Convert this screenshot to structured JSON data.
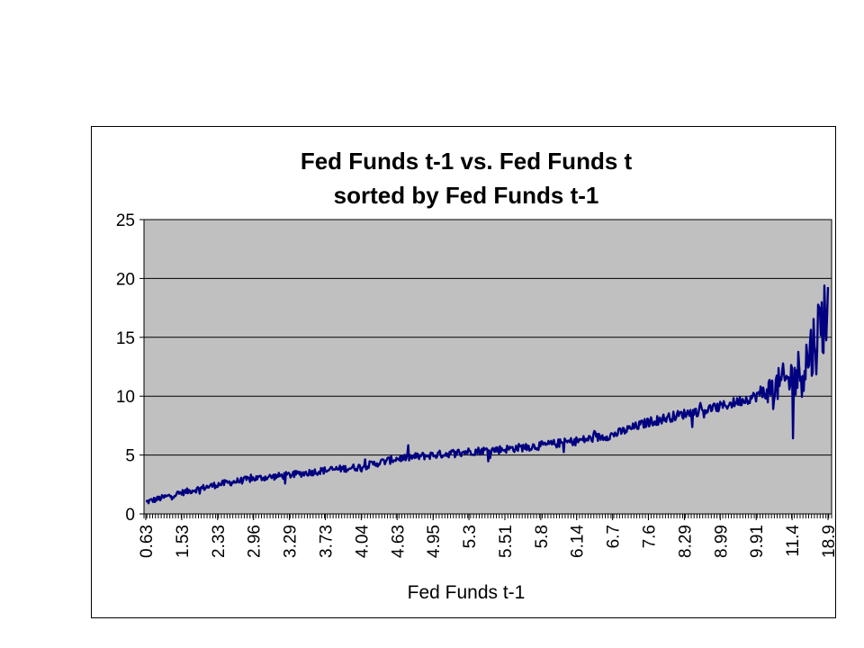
{
  "chart_data": {
    "type": "line",
    "title": "Fed Funds t-1 vs. Fed Funds t",
    "subtitle": "sorted by Fed Funds t-1",
    "xlabel": "Fed Funds t-1",
    "ylabel": "",
    "ylim": [
      0,
      25
    ],
    "yticks": [
      0,
      5,
      10,
      15,
      20,
      25
    ],
    "x_tick_labels": [
      "0.63",
      "1.53",
      "2.33",
      "2.96",
      "3.29",
      "3.73",
      "4.04",
      "4.63",
      "4.95",
      "5.3",
      "5.51",
      "5.8",
      "6.14",
      "6.7",
      "7.6",
      "8.29",
      "8.99",
      "9.91",
      "11.4",
      "18.9"
    ],
    "grid": "horizontal",
    "legend": "none",
    "plot_background": "#c0c0c0",
    "series": [
      {
        "color": "#000080",
        "x": [
          "0.63",
          "1.53",
          "2.33",
          "2.96",
          "3.29",
          "3.73",
          "4.04",
          "4.63",
          "4.95",
          "5.3",
          "5.51",
          "5.8",
          "6.14",
          "6.7",
          "7.6",
          "8.29",
          "8.99",
          "9.91",
          "11.4",
          "18.9"
        ],
        "values": [
          1.0,
          1.8,
          2.5,
          3.0,
          3.3,
          3.7,
          4.0,
          4.7,
          5.0,
          5.3,
          5.5,
          5.8,
          6.2,
          6.7,
          7.8,
          8.5,
          9.1,
          10.0,
          11.5,
          18.0
        ]
      }
    ]
  }
}
